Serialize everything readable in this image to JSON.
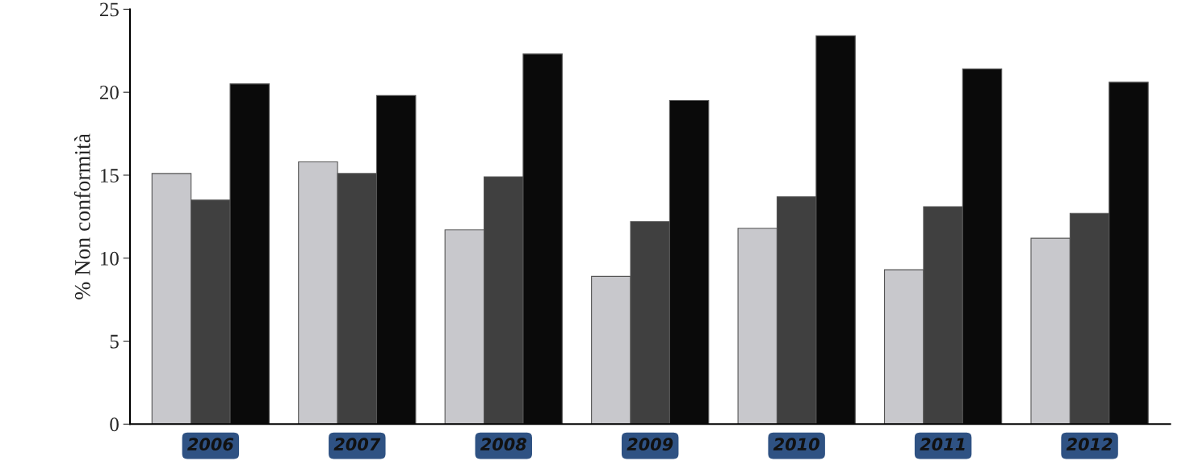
{
  "chart_data": {
    "type": "bar",
    "ylabel": "% Non conformità",
    "categories": [
      "2006",
      "2007",
      "2008",
      "2009",
      "2010",
      "2011",
      "2012"
    ],
    "series": [
      {
        "color": "#c8c8cc",
        "values": [
          15.1,
          15.8,
          11.7,
          8.9,
          11.8,
          9.3,
          11.2
        ]
      },
      {
        "color": "#404040",
        "values": [
          13.5,
          15.1,
          14.9,
          12.2,
          13.7,
          13.1,
          12.7
        ]
      },
      {
        "color": "#0a0a0a",
        "values": [
          20.5,
          19.8,
          22.3,
          19.5,
          23.4,
          21.4,
          20.6
        ]
      }
    ],
    "ylim": [
      0,
      25
    ],
    "yticks": [
      0,
      5,
      10,
      15,
      20,
      25
    ],
    "grid": false,
    "legend": false
  }
}
